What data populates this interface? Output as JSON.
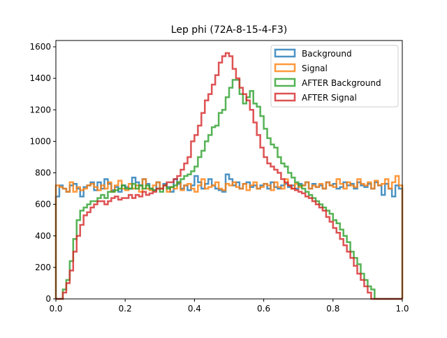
{
  "chart_data": {
    "type": "line",
    "style": "step-histogram",
    "title": "Lep phi (72A-8-15-4-F3)",
    "xlabel": "",
    "ylabel": "",
    "xlim": [
      0.0,
      1.0
    ],
    "ylim": [
      0,
      1640
    ],
    "xticks": [
      "0.0",
      "0.2",
      "0.4",
      "0.6",
      "0.8",
      "1.0"
    ],
    "xtick_values": [
      0.0,
      0.2,
      0.4,
      0.6,
      0.8,
      1.0
    ],
    "yticks": [
      "0",
      "200",
      "400",
      "600",
      "800",
      "1000",
      "1200",
      "1400",
      "1600"
    ],
    "ytick_values": [
      0,
      200,
      400,
      600,
      800,
      1000,
      1200,
      1400,
      1600
    ],
    "grid": false,
    "legend_position": "top-right",
    "bins": 100,
    "bin_range": [
      0.0,
      1.0
    ],
    "series": [
      {
        "name": "Background",
        "color": "#1f77b4",
        "values": [
          650,
          720,
          700,
          680,
          720,
          730,
          700,
          650,
          710,
          720,
          740,
          690,
          740,
          700,
          760,
          730,
          690,
          710,
          680,
          720,
          710,
          700,
          770,
          740,
          720,
          760,
          730,
          700,
          690,
          740,
          700,
          730,
          710,
          680,
          760,
          730,
          700,
          720,
          690,
          720,
          780,
          740,
          700,
          730,
          760,
          720,
          700,
          690,
          680,
          790,
          760,
          720,
          740,
          700,
          730,
          740,
          710,
          720,
          700,
          720,
          730,
          700,
          740,
          710,
          700,
          720,
          730,
          710,
          720,
          700,
          730,
          720,
          740,
          700,
          730,
          710,
          720,
          700,
          740,
          720,
          730,
          700,
          710,
          740,
          720,
          730,
          700,
          740,
          720,
          710,
          730,
          700,
          740,
          720,
          660,
          730,
          700,
          650,
          720,
          700
        ]
      },
      {
        "name": "Signal",
        "color": "#ff7f0e",
        "values": [
          720,
          710,
          700,
          680,
          740,
          680,
          710,
          690,
          700,
          720,
          730,
          710,
          690,
          720,
          700,
          740,
          680,
          720,
          750,
          700,
          690,
          730,
          700,
          720,
          680,
          760,
          700,
          690,
          720,
          740,
          700,
          720,
          680,
          710,
          700,
          740,
          690,
          720,
          730,
          700,
          680,
          720,
          760,
          700,
          710,
          720,
          740,
          700,
          690,
          730,
          720,
          740,
          710,
          700,
          730,
          690,
          720,
          740,
          700,
          710,
          730,
          720,
          690,
          740,
          710,
          700,
          760,
          720,
          700,
          730,
          710,
          720,
          740,
          700,
          720,
          710,
          730,
          700,
          740,
          720,
          710,
          760,
          730,
          700,
          740,
          720,
          710,
          760,
          730,
          720,
          740,
          700,
          750,
          720,
          730,
          760,
          700,
          740,
          780,
          720
        ]
      },
      {
        "name": "AFTER Background",
        "color": "#2ca02c",
        "values": [
          0,
          0,
          60,
          120,
          240,
          380,
          500,
          560,
          580,
          600,
          620,
          620,
          640,
          660,
          640,
          680,
          680,
          690,
          700,
          720,
          700,
          700,
          730,
          700,
          720,
          700,
          720,
          700,
          690,
          700,
          680,
          720,
          700,
          710,
          720,
          740,
          760,
          780,
          790,
          810,
          840,
          900,
          940,
          1000,
          1040,
          1090,
          1100,
          1180,
          1200,
          1280,
          1340,
          1390,
          1390,
          1300,
          1240,
          1280,
          1320,
          1240,
          1220,
          1160,
          1080,
          1020,
          980,
          960,
          900,
          860,
          840,
          800,
          770,
          740,
          720,
          700,
          680,
          660,
          640,
          620,
          600,
          580,
          560,
          540,
          500,
          480,
          440,
          400,
          360,
          300,
          260,
          220,
          160,
          120,
          80,
          60,
          0,
          0,
          0,
          0,
          0,
          0,
          0,
          0
        ]
      },
      {
        "name": "AFTER Signal",
        "color": "#d62728",
        "values": [
          0,
          0,
          40,
          100,
          180,
          300,
          400,
          470,
          530,
          550,
          580,
          600,
          620,
          620,
          600,
          620,
          640,
          650,
          630,
          640,
          640,
          660,
          640,
          660,
          650,
          680,
          660,
          670,
          680,
          700,
          700,
          720,
          740,
          740,
          760,
          780,
          820,
          860,
          900,
          1000,
          1040,
          1100,
          1180,
          1260,
          1300,
          1360,
          1420,
          1500,
          1540,
          1560,
          1540,
          1460,
          1400,
          1340,
          1300,
          1260,
          1200,
          1120,
          1040,
          960,
          900,
          860,
          840,
          820,
          800,
          760,
          740,
          720,
          700,
          690,
          680,
          670,
          650,
          640,
          620,
          600,
          580,
          560,
          520,
          490,
          450,
          420,
          380,
          340,
          300,
          260,
          210,
          160,
          120,
          80,
          40,
          0,
          0,
          0,
          0,
          0,
          0,
          0,
          0,
          0
        ]
      }
    ]
  }
}
